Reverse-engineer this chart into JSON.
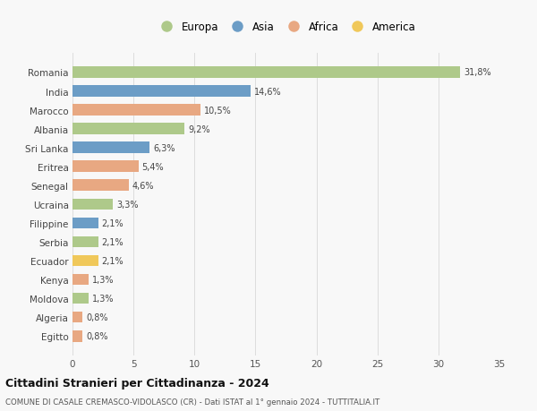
{
  "countries": [
    "Romania",
    "India",
    "Marocco",
    "Albania",
    "Sri Lanka",
    "Eritrea",
    "Senegal",
    "Ucraina",
    "Filippine",
    "Serbia",
    "Ecuador",
    "Kenya",
    "Moldova",
    "Algeria",
    "Egitto"
  ],
  "values": [
    31.8,
    14.6,
    10.5,
    9.2,
    6.3,
    5.4,
    4.6,
    3.3,
    2.1,
    2.1,
    2.1,
    1.3,
    1.3,
    0.8,
    0.8
  ],
  "labels": [
    "31,8%",
    "14,6%",
    "10,5%",
    "9,2%",
    "6,3%",
    "5,4%",
    "4,6%",
    "3,3%",
    "2,1%",
    "2,1%",
    "2,1%",
    "1,3%",
    "1,3%",
    "0,8%",
    "0,8%"
  ],
  "colors": [
    "#aec98a",
    "#6c9dc6",
    "#e8a882",
    "#aec98a",
    "#6c9dc6",
    "#e8a882",
    "#e8a882",
    "#aec98a",
    "#6c9dc6",
    "#aec98a",
    "#f0c85a",
    "#e8a882",
    "#aec98a",
    "#e8a882",
    "#e8a882"
  ],
  "legend_labels": [
    "Europa",
    "Asia",
    "Africa",
    "America"
  ],
  "legend_colors": [
    "#aec98a",
    "#6c9dc6",
    "#e8a882",
    "#f0c85a"
  ],
  "title": "Cittadini Stranieri per Cittadinanza - 2024",
  "subtitle": "COMUNE DI CASALE CREMASCO-VIDOLASCO (CR) - Dati ISTAT al 1° gennaio 2024 - TUTTITALIA.IT",
  "xlim": [
    0,
    35
  ],
  "xticks": [
    0,
    5,
    10,
    15,
    20,
    25,
    30,
    35
  ],
  "bg_color": "#f8f8f8",
  "grid_color": "#dddddd"
}
